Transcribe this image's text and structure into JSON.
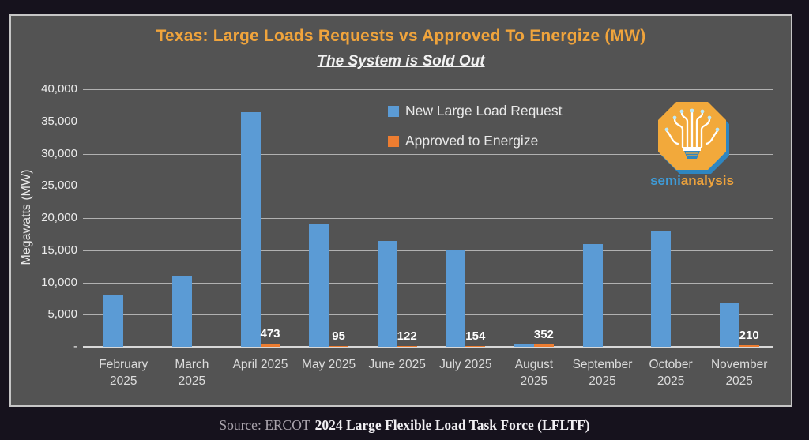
{
  "window": {
    "background": "#16121D",
    "panel_background": "#535353",
    "panel_border": "#C6C6C6"
  },
  "header": {
    "title": "Texas: Large Loads Requests vs Approved To Energize (MW)",
    "subtitle": "The System is Sold Out",
    "title_color": "#F0A43C"
  },
  "logo": {
    "name": "semianalysis-logo",
    "wordmark_semi": "semi",
    "wordmark_analysis": "analysis",
    "badge_color": "#F2A93B",
    "shadow_color": "#2E86C1",
    "semi_color": "#3E9CD9",
    "analysis_color": "#F0A43C"
  },
  "footer": {
    "source_prefix": "Source: ERCOT",
    "source_link": "2024 Large Flexible Load Task Force (LFLTF)"
  },
  "chart_data": {
    "type": "bar",
    "title": "Texas: Large Loads Requests vs Approved To Energize (MW)",
    "subtitle": "The System is Sold Out",
    "xlabel": "",
    "ylabel": "Megawatts (MW)",
    "ylim": [
      0,
      40000
    ],
    "ytick_interval": 5000,
    "ytick_labels": [
      "-",
      "5,000",
      "10,000",
      "15,000",
      "20,000",
      "25,000",
      "30,000",
      "35,000",
      "40,000"
    ],
    "grid": true,
    "legend_position": "inside-top-right",
    "categories": [
      "February 2025",
      "March 2025",
      "April 2025",
      "May 2025",
      "June 2025",
      "July 2025",
      "August 2025",
      "September 2025",
      "October 2025",
      "November 2025"
    ],
    "category_label_lines": [
      [
        "February",
        "2025"
      ],
      [
        "March",
        "2025"
      ],
      [
        "April 2025"
      ],
      [
        "May 2025"
      ],
      [
        "June 2025"
      ],
      [
        "July 2025"
      ],
      [
        "August",
        "2025"
      ],
      [
        "September",
        "2025"
      ],
      [
        "October",
        "2025"
      ],
      [
        "November",
        "2025"
      ]
    ],
    "series": [
      {
        "name": "New Large Load Request",
        "color": "#5B9BD5",
        "values": [
          8000,
          11000,
          36500,
          19200,
          16500,
          15000,
          450,
          16000,
          18000,
          6800
        ],
        "values_note": "estimated from gridlines",
        "data_labels": false
      },
      {
        "name": "Approved to Energize",
        "color": "#ED7D31",
        "values": [
          null,
          null,
          473,
          95,
          122,
          154,
          352,
          null,
          null,
          210
        ],
        "data_labels": true
      }
    ]
  }
}
